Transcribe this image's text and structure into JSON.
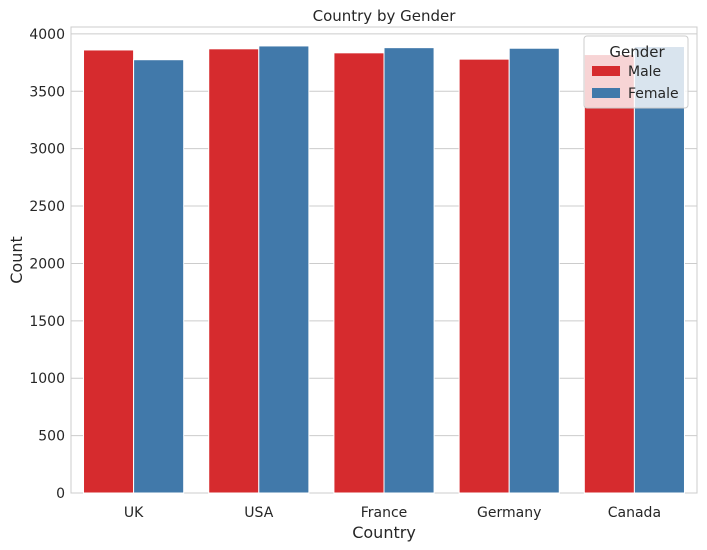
{
  "chart_data": {
    "type": "bar",
    "title": "Country by Gender",
    "xlabel": "Country",
    "ylabel": "Count",
    "categories": [
      "UK",
      "USA",
      "France",
      "Germany",
      "Canada"
    ],
    "series": [
      {
        "name": "Male",
        "color": "#d62b2e",
        "values": [
          3860,
          3870,
          3835,
          3780,
          3820
        ]
      },
      {
        "name": "Female",
        "color": "#4179aa",
        "values": [
          3775,
          3895,
          3880,
          3875,
          3890
        ]
      }
    ],
    "ylim": [
      0,
      4060
    ],
    "yticks": [
      0,
      500,
      1000,
      1500,
      2000,
      2500,
      3000,
      3500,
      4000
    ],
    "grid": true,
    "legend": {
      "title": "Gender",
      "placement": "top-right"
    }
  }
}
